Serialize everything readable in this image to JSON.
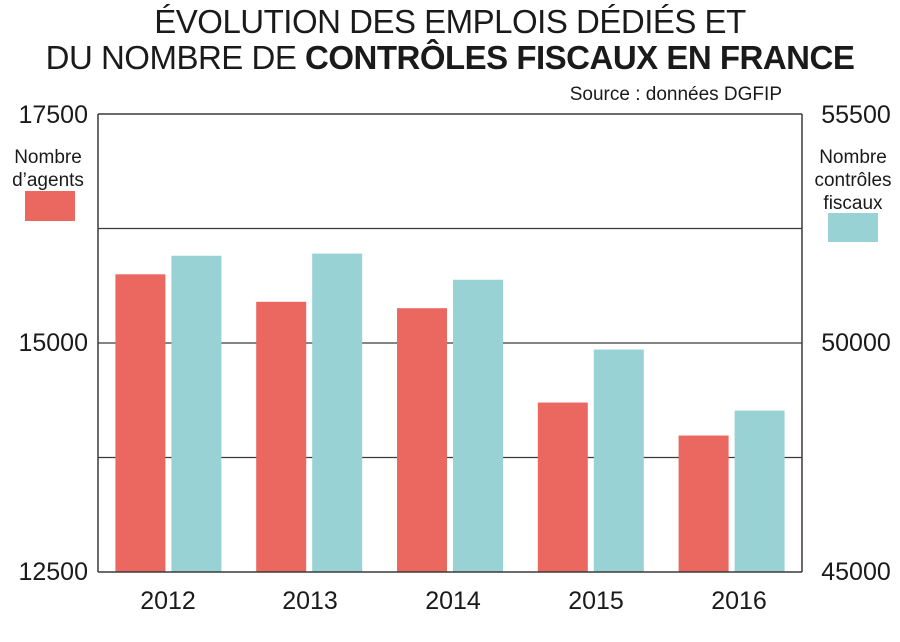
{
  "title": {
    "line1": "ÉVOLUTION DES EMPLOIS DÉDIÉS ET",
    "line2_regular": "DU NOMBRE DE",
    "line2_bold": "CONTRÔLES FISCAUX EN FRANCE"
  },
  "source": "Source : données DGFIP",
  "colors": {
    "agents": "#EA6860",
    "controles": "#99D2D5",
    "axis": "#3a3a3a"
  },
  "legend": {
    "left": {
      "line1": "Nombre",
      "line2": "d’agents"
    },
    "right": {
      "line1": "Nombre",
      "line2": "contrôles",
      "line3": "fiscaux"
    }
  },
  "chart_data": {
    "type": "bar",
    "categories": [
      "2012",
      "2013",
      "2014",
      "2015",
      "2016"
    ],
    "series": [
      {
        "name": "Nombre d’agents",
        "axis": "left",
        "values": [
          15750,
          15450,
          15380,
          14350,
          13990
        ]
      },
      {
        "name": "Nombre contrôles fiscaux",
        "axis": "right",
        "values": [
          52250,
          52300,
          51700,
          50100,
          48700
        ]
      }
    ],
    "y_left": {
      "min": 12500,
      "max": 17500,
      "ticks": [
        "17500",
        "15000",
        "12500"
      ]
    },
    "y_right": {
      "min": 45000,
      "max": 55500,
      "ticks": [
        "55500",
        "50000",
        "45000"
      ]
    },
    "gridlines": [
      13750,
      15000,
      16250
    ]
  }
}
